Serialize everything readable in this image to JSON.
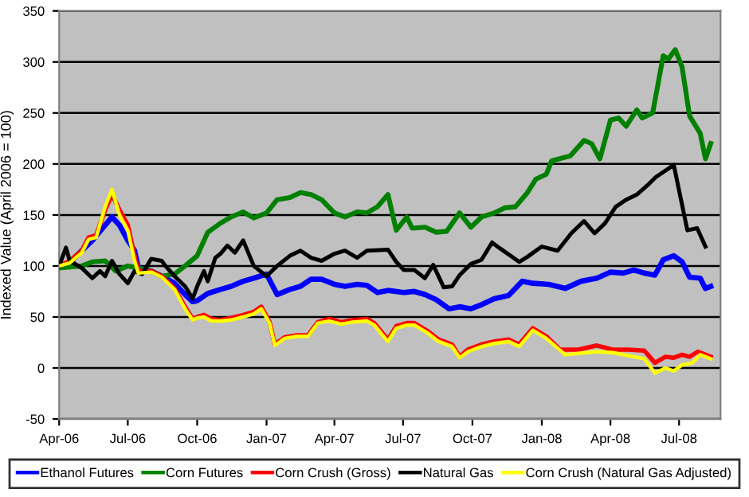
{
  "chart_data": {
    "type": "line",
    "ylabel": "Indexed Value (April 2006 = 100)",
    "xlim": [
      "2006-04-01",
      "2008-08-25"
    ],
    "ylim": [
      -50,
      350
    ],
    "yticks": [
      -50,
      0,
      50,
      100,
      150,
      200,
      250,
      300,
      350
    ],
    "xticks": [
      {
        "value": "2006-04-01",
        "label": "Apr-06"
      },
      {
        "value": "2006-07-01",
        "label": "Jul-06"
      },
      {
        "value": "2006-10-01",
        "label": "Oct-06"
      },
      {
        "value": "2007-01-01",
        "label": "Jan-07"
      },
      {
        "value": "2007-04-01",
        "label": "Apr-07"
      },
      {
        "value": "2007-07-01",
        "label": "Jul-07"
      },
      {
        "value": "2007-10-01",
        "label": "Oct-07"
      },
      {
        "value": "2008-01-01",
        "label": "Jan-08"
      },
      {
        "value": "2008-04-01",
        "label": "Apr-08"
      },
      {
        "value": "2008-07-01",
        "label": "Jul-08"
      }
    ],
    "grid": "y",
    "legend": "bottom",
    "marker": "none",
    "line_style": "solid",
    "series": [
      {
        "name": "Ethanol Futures",
        "color": "#0000ff",
        "x": [
          "2006-04-01",
          "2006-04-15",
          "2006-05-01",
          "2006-05-15",
          "2006-06-01",
          "2006-06-10",
          "2006-06-20",
          "2006-07-01",
          "2006-07-10",
          "2006-07-15",
          "2006-08-01",
          "2006-08-15",
          "2006-09-01",
          "2006-09-15",
          "2006-09-25",
          "2006-10-01",
          "2006-10-15",
          "2006-11-01",
          "2006-11-15",
          "2006-12-01",
          "2006-12-15",
          "2007-01-01",
          "2007-01-15",
          "2007-02-01",
          "2007-02-15",
          "2007-03-01",
          "2007-03-15",
          "2007-04-01",
          "2007-04-15",
          "2007-05-01",
          "2007-05-14",
          "2007-05-28",
          "2007-06-11",
          "2007-07-02",
          "2007-07-16",
          "2007-07-30",
          "2007-08-14",
          "2007-08-31",
          "2007-09-14",
          "2007-09-29",
          "2007-10-13",
          "2007-10-30",
          "2007-11-18",
          "2007-12-06",
          "2007-12-20",
          "2008-01-10",
          "2008-02-01",
          "2008-02-22",
          "2008-03-14",
          "2008-04-01",
          "2008-04-18",
          "2008-05-02",
          "2008-05-16",
          "2008-05-30",
          "2008-06-10",
          "2008-06-24",
          "2008-07-05",
          "2008-07-15",
          "2008-07-29",
          "2008-08-05",
          "2008-08-12"
        ],
        "values": [
          100,
          103,
          115,
          125,
          140,
          148,
          140,
          125,
          115,
          98,
          95,
          90,
          83,
          72,
          65,
          66,
          73,
          77,
          80,
          85,
          88,
          92,
          72,
          77,
          80,
          87,
          87,
          82,
          80,
          82,
          81,
          74,
          76,
          74,
          75,
          72,
          67,
          58,
          60,
          58,
          62,
          68,
          71,
          85,
          83,
          82,
          78,
          85,
          88,
          94,
          93,
          96,
          93,
          91,
          106,
          110,
          104,
          89,
          88,
          78,
          80
        ]
      },
      {
        "name": "Corn Futures",
        "color": "#008000",
        "x": [
          "2006-04-01",
          "2006-04-15",
          "2006-05-01",
          "2006-05-15",
          "2006-06-01",
          "2006-06-15",
          "2006-07-01",
          "2006-07-15",
          "2006-08-01",
          "2006-08-15",
          "2006-09-01",
          "2006-09-15",
          "2006-10-01",
          "2006-10-15",
          "2006-11-01",
          "2006-11-15",
          "2006-12-01",
          "2006-12-15",
          "2007-01-01",
          "2007-01-15",
          "2007-02-01",
          "2007-02-15",
          "2007-03-01",
          "2007-03-15",
          "2007-04-01",
          "2007-04-15",
          "2007-05-01",
          "2007-05-14",
          "2007-05-28",
          "2007-06-11",
          "2007-06-22",
          "2007-07-06",
          "2007-07-13",
          "2007-07-30",
          "2007-08-14",
          "2007-08-28",
          "2007-09-14",
          "2007-09-29",
          "2007-10-13",
          "2007-10-30",
          "2007-11-13",
          "2007-11-27",
          "2007-12-13",
          "2007-12-24",
          "2008-01-07",
          "2008-01-14",
          "2008-02-08",
          "2008-02-26",
          "2008-03-07",
          "2008-03-18",
          "2008-04-01",
          "2008-04-12",
          "2008-04-22",
          "2008-05-06",
          "2008-05-13",
          "2008-05-27",
          "2008-06-10",
          "2008-06-17",
          "2008-06-26",
          "2008-07-05",
          "2008-07-15",
          "2008-07-29",
          "2008-08-05",
          "2008-08-12"
        ],
        "values": [
          98,
          99,
          100,
          104,
          105,
          95,
          100,
          98,
          95,
          90,
          92,
          100,
          110,
          133,
          142,
          148,
          153,
          147,
          152,
          165,
          167,
          172,
          170,
          165,
          152,
          148,
          153,
          152,
          158,
          170,
          135,
          148,
          137,
          138,
          133,
          134,
          152,
          138,
          148,
          152,
          157,
          158,
          172,
          185,
          190,
          203,
          208,
          223,
          220,
          205,
          243,
          245,
          237,
          253,
          245,
          250,
          306,
          303,
          312,
          295,
          247,
          230,
          205,
          220
        ]
      },
      {
        "name": "Corn Crush (Gross)",
        "color": "#ff0000",
        "x": [
          "2006-04-01",
          "2006-04-15",
          "2006-05-01",
          "2006-05-10",
          "2006-05-20",
          "2006-06-01",
          "2006-06-10",
          "2006-06-20",
          "2006-07-01",
          "2006-07-10",
          "2006-07-15",
          "2006-08-01",
          "2006-08-15",
          "2006-09-01",
          "2006-09-15",
          "2006-09-25",
          "2006-10-01",
          "2006-10-10",
          "2006-10-20",
          "2006-11-01",
          "2006-11-15",
          "2006-12-01",
          "2006-12-15",
          "2006-12-25",
          "2007-01-05",
          "2007-01-12",
          "2007-01-25",
          "2007-02-10",
          "2007-02-25",
          "2007-03-10",
          "2007-03-25",
          "2007-04-10",
          "2007-04-25",
          "2007-05-14",
          "2007-05-24",
          "2007-06-04",
          "2007-06-11",
          "2007-06-22",
          "2007-07-06",
          "2007-07-16",
          "2007-08-03",
          "2007-08-17",
          "2007-09-04",
          "2007-09-14",
          "2007-09-25",
          "2007-10-13",
          "2007-10-30",
          "2007-11-18",
          "2007-12-02",
          "2007-12-20",
          "2008-01-07",
          "2008-01-25",
          "2008-02-18",
          "2008-03-14",
          "2008-04-04",
          "2008-04-25",
          "2008-05-16",
          "2008-05-30",
          "2008-06-13",
          "2008-06-24",
          "2008-07-05",
          "2008-07-15",
          "2008-07-26",
          "2008-08-12"
        ],
        "values": [
          100,
          105,
          115,
          128,
          130,
          155,
          170,
          155,
          140,
          110,
          95,
          95,
          90,
          78,
          60,
          48,
          50,
          52,
          48,
          47,
          49,
          52,
          55,
          60,
          45,
          23,
          30,
          32,
          32,
          45,
          48,
          45,
          47,
          48,
          44,
          34,
          28,
          41,
          44,
          44,
          36,
          28,
          23,
          11,
          18,
          23,
          26,
          28,
          23,
          39,
          31,
          18,
          18,
          22,
          18,
          18,
          17,
          5,
          11,
          10,
          13,
          11,
          16,
          11
        ]
      },
      {
        "name": "Natural Gas",
        "color": "#000000",
        "x": [
          "2006-04-01",
          "2006-04-10",
          "2006-04-15",
          "2006-05-01",
          "2006-05-15",
          "2006-05-25",
          "2006-06-01",
          "2006-06-10",
          "2006-06-20",
          "2006-07-01",
          "2006-07-10",
          "2006-07-20",
          "2006-08-01",
          "2006-08-15",
          "2006-08-20",
          "2006-09-01",
          "2006-09-15",
          "2006-09-25",
          "2006-10-01",
          "2006-10-10",
          "2006-10-15",
          "2006-10-25",
          "2006-11-01",
          "2006-11-10",
          "2006-11-20",
          "2006-12-01",
          "2006-12-15",
          "2007-01-01",
          "2007-01-15",
          "2007-02-01",
          "2007-02-15",
          "2007-03-01",
          "2007-03-15",
          "2007-04-01",
          "2007-04-15",
          "2007-05-01",
          "2007-05-14",
          "2007-06-11",
          "2007-06-22",
          "2007-07-02",
          "2007-07-16",
          "2007-07-30",
          "2007-08-10",
          "2007-08-24",
          "2007-09-04",
          "2007-09-14",
          "2007-09-29",
          "2007-10-13",
          "2007-10-27",
          "2007-11-07",
          "2007-12-02",
          "2007-12-13",
          "2008-01-01",
          "2008-01-22",
          "2008-02-09",
          "2008-02-26",
          "2008-03-11",
          "2008-03-25",
          "2008-04-08",
          "2008-04-22",
          "2008-05-06",
          "2008-05-20",
          "2008-05-31",
          "2008-06-24",
          "2008-07-12",
          "2008-07-25",
          "2008-08-05"
        ],
        "values": [
          100,
          118,
          105,
          98,
          88,
          95,
          90,
          105,
          92,
          83,
          95,
          92,
          107,
          105,
          100,
          90,
          80,
          68,
          80,
          95,
          85,
          108,
          112,
          120,
          113,
          125,
          100,
          90,
          100,
          110,
          115,
          108,
          105,
          112,
          115,
          108,
          115,
          116,
          104,
          96,
          96,
          88,
          101,
          79,
          80,
          91,
          102,
          106,
          123,
          117,
          104,
          109,
          119,
          115,
          132,
          144,
          132,
          142,
          158,
          165,
          170,
          179,
          187,
          199,
          135,
          137,
          119
        ]
      },
      {
        "name": "Corn Crush (Natural Gas Adjusted)",
        "color": "#ffff00",
        "x": [
          "2006-04-01",
          "2006-04-15",
          "2006-05-01",
          "2006-05-10",
          "2006-05-20",
          "2006-06-01",
          "2006-06-10",
          "2006-06-20",
          "2006-07-01",
          "2006-07-10",
          "2006-07-15",
          "2006-08-01",
          "2006-08-15",
          "2006-09-01",
          "2006-09-15",
          "2006-09-25",
          "2006-10-01",
          "2006-10-10",
          "2006-10-20",
          "2006-11-01",
          "2006-11-15",
          "2006-12-01",
          "2006-12-15",
          "2006-12-25",
          "2007-01-05",
          "2007-01-12",
          "2007-01-25",
          "2007-02-10",
          "2007-02-25",
          "2007-03-10",
          "2007-03-25",
          "2007-04-10",
          "2007-04-25",
          "2007-05-14",
          "2007-05-24",
          "2007-06-04",
          "2007-06-11",
          "2007-06-22",
          "2007-07-06",
          "2007-07-16",
          "2007-08-03",
          "2007-08-17",
          "2007-09-04",
          "2007-09-14",
          "2007-09-25",
          "2007-10-13",
          "2007-10-30",
          "2007-11-18",
          "2007-12-02",
          "2007-12-20",
          "2008-01-07",
          "2008-02-01",
          "2008-03-14",
          "2008-04-04",
          "2008-05-02",
          "2008-05-16",
          "2008-05-30",
          "2008-06-13",
          "2008-06-24",
          "2008-07-05",
          "2008-07-19",
          "2008-07-29",
          "2008-08-12"
        ],
        "values": [
          100,
          103,
          113,
          126,
          128,
          158,
          175,
          150,
          135,
          105,
          93,
          94,
          89,
          77,
          58,
          47,
          49,
          50,
          46,
          46,
          47,
          50,
          53,
          58,
          44,
          22,
          29,
          31,
          31,
          44,
          46,
          43,
          45,
          46,
          42,
          32,
          26,
          39,
          42,
          42,
          34,
          26,
          21,
          10,
          16,
          21,
          24,
          26,
          21,
          37,
          29,
          13,
          16,
          15,
          11,
          9,
          -5,
          0,
          -3,
          3,
          5,
          13,
          9
        ]
      }
    ]
  }
}
